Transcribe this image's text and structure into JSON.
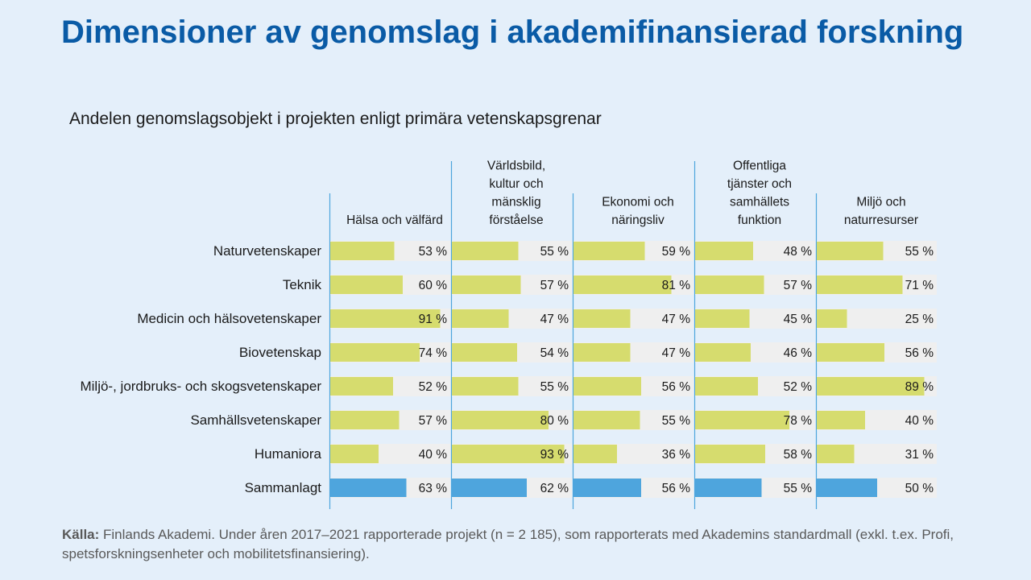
{
  "title": "Dimensioner av genomslag i akademifinansierad forskning",
  "subtitle": "Andelen genomslagsobjekt i projekten enligt primära vetenskapsgrenar",
  "source": {
    "label": "Källa:",
    "text": " Finlands Akademi. Under åren 2017–2021  rapporterade projekt (n = 2 185), som rapporterats med Akademins standardmall (exkl. t.ex. Profi, spetsforskningsenheter  och mobilitetsfinansiering)."
  },
  "colors": {
    "background": "#e4effa",
    "bar": "#d6dc6e",
    "total_bar": "#4ea5dd",
    "track": "#efefef",
    "divider": "#4ea5dd",
    "title": "#0a5ba6"
  },
  "chart_data": {
    "type": "bar",
    "orientation": "horizontal",
    "value_unit": "%",
    "value_suffix": " %",
    "xlim": [
      0,
      100
    ],
    "grid": false,
    "legend": "none",
    "categories": [
      "Naturvetenskaper",
      "Teknik",
      "Medicin och hälsovetenskaper",
      "Biovetenskap",
      "Miljö-, jordbruks- och skogsvetenskaper",
      "Samhällsvetenskaper",
      "Humaniora",
      "Sammanlagt"
    ],
    "highlight_category": "Sammanlagt",
    "series": [
      {
        "name": [
          "Hälsa och välfärd"
        ],
        "values": [
          53,
          60,
          91,
          74,
          52,
          57,
          40,
          63
        ]
      },
      {
        "name": [
          "Världsbild,",
          "kultur och",
          "mänsklig",
          "förståelse"
        ],
        "values": [
          55,
          57,
          47,
          54,
          55,
          80,
          93,
          62
        ]
      },
      {
        "name": [
          "Ekonomi och",
          "näringsliv"
        ],
        "values": [
          59,
          81,
          47,
          47,
          56,
          55,
          36,
          56
        ]
      },
      {
        "name": [
          "Offentliga",
          "tjänster och",
          "samhällets",
          "funktion"
        ],
        "values": [
          48,
          57,
          45,
          46,
          52,
          78,
          58,
          55
        ]
      },
      {
        "name": [
          "Miljö och",
          "naturresurser"
        ],
        "values": [
          55,
          71,
          25,
          56,
          89,
          40,
          31,
          50
        ]
      }
    ]
  }
}
